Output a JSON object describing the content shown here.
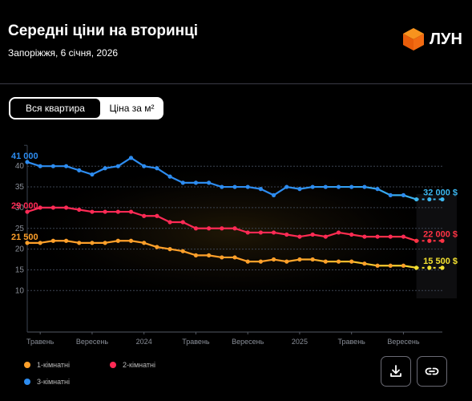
{
  "header": {
    "title": "Середні ціни на вторинці",
    "subtitle": "Запоріжжя, 6 січня, 2026",
    "logo_text": "ЛУН",
    "logo_colors": {
      "top": "#f7931e",
      "left": "#e85d0a",
      "right": "#f26b12"
    }
  },
  "toggle": {
    "active_label": "Вся квартира",
    "inactive_label": "Ціна за м²"
  },
  "legend": {
    "items": [
      {
        "label": "1-кімнатні",
        "color": "#ffa02a"
      },
      {
        "label": "2-кімнатні",
        "color": "#ff2a55"
      },
      {
        "label": "3-кімнатні",
        "color": "#2d8cf0"
      }
    ]
  },
  "actions": {
    "download_icon": "download-icon",
    "link_icon": "link-icon"
  },
  "chart_data": {
    "type": "line",
    "y_ticks": [
      10,
      15,
      20,
      25,
      30,
      35,
      40
    ],
    "ylim": [
      0,
      44
    ],
    "x_labels": [
      {
        "label": "Травень",
        "index": 1
      },
      {
        "label": "Вересень",
        "index": 5
      },
      {
        "label": "2024",
        "index": 9
      },
      {
        "label": "Травень",
        "index": 13
      },
      {
        "label": "Вересень",
        "index": 17
      },
      {
        "label": "2025",
        "index": 21
      },
      {
        "label": "Травень",
        "index": 25
      },
      {
        "label": "Вересень",
        "index": 29
      }
    ],
    "grid": true,
    "forecast_start_index": 30,
    "series": [
      {
        "name": "3-кімнатні",
        "color": "#2d8cf0",
        "end_color": "#3cb7f0",
        "values": [
          41.0,
          40.0,
          40.0,
          40.0,
          39.0,
          38.0,
          39.5,
          40.0,
          42.0,
          40.0,
          39.5,
          37.5,
          36.0,
          36.0,
          36.0,
          35.0,
          35.0,
          35.0,
          34.5,
          33.0,
          35.0,
          34.5,
          35.0,
          35.0,
          35.0,
          35.0,
          35.0,
          34.5,
          33.0,
          33.0,
          32.0,
          32.0,
          32.0
        ],
        "start_label": "41 000",
        "end_label": "32 000 $"
      },
      {
        "name": "2-кімнатні",
        "color": "#ff2a55",
        "end_color": "#ff3344",
        "values": [
          29.0,
          30.0,
          30.0,
          30.0,
          29.5,
          29.0,
          29.0,
          29.0,
          29.0,
          28.0,
          28.0,
          26.5,
          26.5,
          25.0,
          25.0,
          25.0,
          25.0,
          24.0,
          24.0,
          24.0,
          23.5,
          23.0,
          23.5,
          23.0,
          24.0,
          23.5,
          23.0,
          23.0,
          23.0,
          23.0,
          22.0,
          22.0,
          22.0
        ],
        "start_label": "29 000",
        "end_label": "22 000 $"
      },
      {
        "name": "1-кімнатні",
        "color": "#ffa02a",
        "end_color": "#f2e030",
        "values": [
          21.5,
          21.5,
          22.0,
          22.0,
          21.5,
          21.5,
          21.5,
          22.0,
          22.0,
          21.5,
          20.5,
          20.0,
          19.5,
          18.5,
          18.5,
          18.0,
          18.0,
          17.0,
          17.0,
          17.5,
          17.0,
          17.5,
          17.5,
          17.0,
          17.0,
          17.0,
          16.5,
          16.0,
          16.0,
          16.0,
          15.5,
          15.5,
          15.5
        ],
        "start_label": "21 500",
        "end_label": "15 500 $"
      }
    ]
  }
}
